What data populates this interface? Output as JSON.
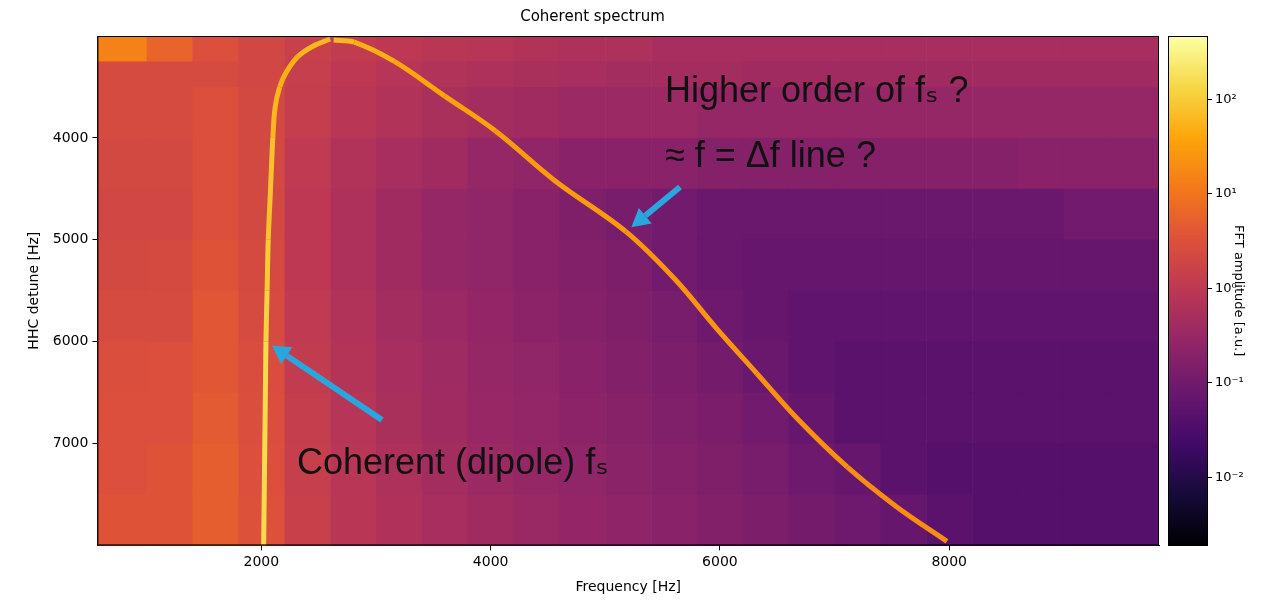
{
  "chart_data": {
    "type": "heatmap",
    "title": "Coherent spectrum",
    "x_label": "Frequency [Hz]",
    "y_label": "HHC detune [Hz]",
    "xlim": [
      570,
      9830
    ],
    "xticks": [
      2000,
      4000,
      6000,
      8000
    ],
    "ylim": [
      8000,
      3000
    ],
    "yticks": [
      4000,
      5000,
      6000,
      7000
    ],
    "grid": false,
    "x_bins": [
      570,
      1000,
      1400,
      1800,
      2200,
      2600,
      3000,
      3400,
      3800,
      4200,
      4600,
      5000,
      5400,
      5800,
      6200,
      6600,
      7000,
      7400,
      7800,
      8200,
      8600,
      9000,
      9400,
      9830
    ],
    "y_bins": [
      3000,
      3250,
      3500,
      4000,
      4500,
      5000,
      5500,
      6000,
      6500,
      7000,
      7500,
      8000
    ],
    "cells": [
      [
        15,
        6,
        3,
        2,
        1.5,
        1.2,
        1,
        0.9,
        0.8,
        0.7,
        0.6,
        0.6,
        0.5,
        0.5,
        0.5,
        0.5,
        0.5,
        0.5,
        0.5,
        0.5,
        0.5,
        0.5,
        0.5
      ],
      [
        2.5,
        2.5,
        2.5,
        2,
        1.4,
        1,
        0.8,
        0.7,
        0.6,
        0.55,
        0.5,
        0.45,
        0.45,
        0.45,
        0.4,
        0.4,
        0.4,
        0.4,
        0.4,
        0.4,
        0.4,
        0.4,
        0.4
      ],
      [
        2.5,
        2.5,
        3,
        2.2,
        1.3,
        0.9,
        0.7,
        0.55,
        0.45,
        0.4,
        0.35,
        0.35,
        0.35,
        0.3,
        0.3,
        0.3,
        0.3,
        0.3,
        0.3,
        0.3,
        0.3,
        0.3,
        0.3
      ],
      [
        2.2,
        2.2,
        3,
        2.2,
        1.1,
        0.7,
        0.5,
        0.4,
        0.3,
        0.25,
        0.2,
        0.2,
        0.2,
        0.18,
        0.18,
        0.18,
        0.18,
        0.18,
        0.18,
        0.18,
        0.2,
        0.2,
        0.2
      ],
      [
        2,
        2,
        3,
        2.2,
        1,
        0.6,
        0.4,
        0.3,
        0.25,
        0.2,
        0.15,
        0.12,
        0.1,
        0.08,
        0.08,
        0.08,
        0.08,
        0.08,
        0.08,
        0.08,
        0.08,
        0.1,
        0.1
      ],
      [
        2.2,
        2.3,
        3.5,
        2.3,
        1,
        0.6,
        0.4,
        0.3,
        0.25,
        0.2,
        0.17,
        0.14,
        0.1,
        0.08,
        0.07,
        0.07,
        0.07,
        0.07,
        0.07,
        0.07,
        0.07,
        0.07,
        0.07
      ],
      [
        2.5,
        2.5,
        4,
        2.5,
        1.1,
        0.7,
        0.45,
        0.35,
        0.28,
        0.22,
        0.18,
        0.15,
        0.12,
        0.09,
        0.07,
        0.06,
        0.06,
        0.06,
        0.06,
        0.06,
        0.06,
        0.06,
        0.06
      ],
      [
        2.8,
        3,
        4,
        2.7,
        1.2,
        0.75,
        0.5,
        0.38,
        0.3,
        0.25,
        0.2,
        0.17,
        0.14,
        0.11,
        0.08,
        0.06,
        0.05,
        0.05,
        0.05,
        0.05,
        0.05,
        0.05,
        0.05
      ],
      [
        3,
        3,
        4.5,
        2.8,
        1.3,
        0.8,
        0.55,
        0.4,
        0.32,
        0.27,
        0.22,
        0.19,
        0.16,
        0.13,
        0.1,
        0.07,
        0.05,
        0.05,
        0.05,
        0.05,
        0.05,
        0.05,
        0.05
      ],
      [
        3,
        3.5,
        5,
        3,
        1.4,
        0.85,
        0.6,
        0.45,
        0.35,
        0.3,
        0.25,
        0.21,
        0.18,
        0.15,
        0.12,
        0.09,
        0.07,
        0.05,
        0.04,
        0.04,
        0.04,
        0.04,
        0.04
      ],
      [
        3.5,
        3.5,
        5,
        3.2,
        1.5,
        0.9,
        0.65,
        0.5,
        0.4,
        0.33,
        0.28,
        0.24,
        0.2,
        0.17,
        0.14,
        0.11,
        0.09,
        0.07,
        0.05,
        0.04,
        0.04,
        0.04,
        0.04
      ]
    ],
    "series": [
      {
        "x": [
          2600,
          2450,
          2320,
          2220,
          2160,
          2120,
          2100,
          2080,
          2060,
          2050,
          2040,
          2035,
          2030,
          2025,
          2020
        ],
        "y": [
          3030,
          3100,
          3200,
          3350,
          3500,
          3700,
          4000,
          4500,
          5000,
          5500,
          6000,
          6500,
          7000,
          7500,
          8000
        ],
        "amplitude": [
          60,
          60,
          50,
          50,
          60,
          60,
          80,
          80,
          100,
          120,
          150,
          150,
          150,
          150,
          150
        ]
      },
      {
        "x": [
          2630,
          2810,
          3160,
          3600,
          4040,
          4560,
          5180,
          5610,
          5970,
          6320,
          6670,
          7110,
          7540,
          7980
        ],
        "y": [
          3040,
          3060,
          3250,
          3590,
          3930,
          4420,
          4920,
          5390,
          5870,
          6310,
          6750,
          7230,
          7620,
          7960
        ],
        "amplitude": [
          60,
          50,
          40,
          35,
          30,
          30,
          25,
          25,
          25,
          22,
          22,
          20,
          20,
          20
        ]
      }
    ],
    "colorbar": {
      "label": "FFT amplitude [a.u.]",
      "log": true,
      "color": "inferno",
      "range": [
        0.0019,
        470
      ],
      "ticks": [
        {
          "value": 0.01,
          "label": "10⁻²"
        },
        {
          "value": 0.1,
          "label": "10⁻¹"
        },
        {
          "value": 1,
          "label": "10⁰"
        },
        {
          "value": 10,
          "label": "10¹"
        },
        {
          "value": 100,
          "label": "10²"
        }
      ]
    },
    "annotations": [
      {
        "text": "Higher order of fₛ ?"
      },
      {
        "text": "≈ f = Δf line ?"
      },
      {
        "text": "Coherent (dipole) fₛ"
      }
    ]
  }
}
